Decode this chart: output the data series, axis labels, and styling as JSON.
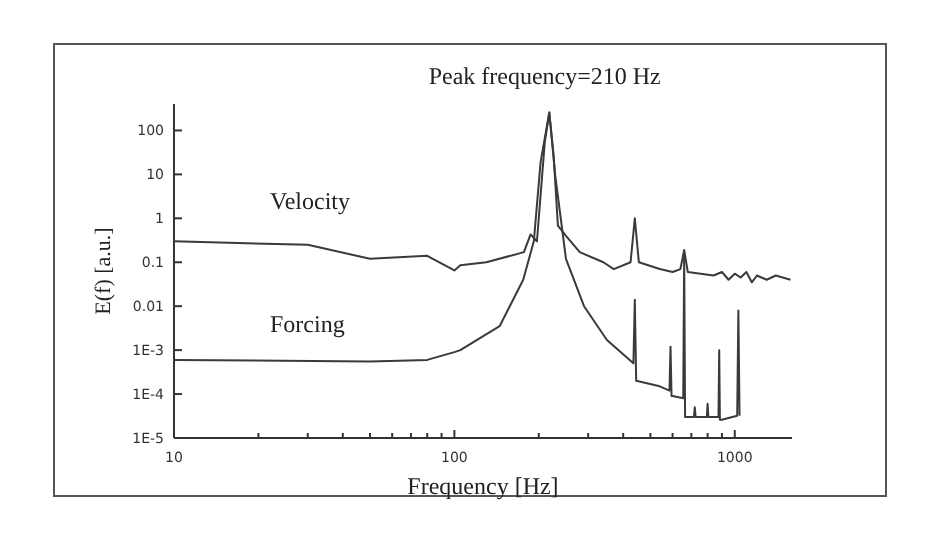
{
  "chart_data": {
    "type": "line",
    "xlabel": "Frequency [Hz]",
    "ylabel": "E(f) [a.u.]",
    "log": "xy",
    "xlim": [
      10,
      1600
    ],
    "ylim": [
      1e-05,
      400
    ],
    "xticks": [
      10,
      {
        "value": 20,
        "label": null
      },
      {
        "value": 30,
        "label": null
      },
      {
        "value": 40,
        "label": null
      },
      {
        "value": 50,
        "label": null
      },
      {
        "value": 60,
        "label": null
      },
      {
        "value": 70,
        "label": null
      },
      {
        "value": 80,
        "label": null
      },
      {
        "value": 90,
        "label": null
      },
      100,
      {
        "value": 200,
        "label": null
      },
      {
        "value": 300,
        "label": null
      },
      {
        "value": 400,
        "label": null
      },
      {
        "value": 500,
        "label": null
      },
      {
        "value": 600,
        "label": null
      },
      {
        "value": 700,
        "label": null
      },
      {
        "value": 800,
        "label": null
      },
      {
        "value": 900,
        "label": null
      },
      1000
    ],
    "yticks": [
      {
        "value": 1e-05,
        "label": "1E-5"
      },
      {
        "value": 0.0001,
        "label": "1E-4"
      },
      {
        "value": 0.001,
        "label": "1E-3"
      },
      0.01,
      0.1,
      1,
      10,
      100
    ],
    "grid": false,
    "marker": "none",
    "line_style": "solid",
    "annotations": [
      "Peak frequency=210 Hz"
    ],
    "series": [
      {
        "name": "Velocity",
        "color": "#3a3a3a",
        "x": [
          10,
          30,
          50,
          80,
          100,
          105,
          130,
          177,
          187,
          197,
          210,
          218,
          226,
          234,
          250,
          280,
          340,
          370,
          425,
          440,
          455,
          540,
          600,
          640,
          660,
          680,
          840,
          900,
          950,
          1000,
          1050,
          1100,
          1150,
          1200,
          1300,
          1400,
          1580
        ],
        "values": [
          0.3,
          0.25,
          0.12,
          0.14,
          0.065,
          0.085,
          0.1,
          0.17,
          0.43,
          0.3,
          53,
          256,
          26,
          0.68,
          0.4,
          0.17,
          0.1,
          0.07,
          0.1,
          1,
          0.1,
          0.07,
          0.06,
          0.07,
          0.19,
          0.06,
          0.05,
          0.06,
          0.04,
          0.055,
          0.045,
          0.06,
          0.035,
          0.05,
          0.04,
          0.05,
          0.04
        ]
      },
      {
        "name": "Forcing",
        "color": "#3a3a3a",
        "x": [
          10,
          50,
          80,
          100,
          105,
          145,
          176,
          192,
          203,
          218,
          229,
          250,
          290,
          350,
          435,
          440,
          445,
          540,
          585,
          590,
          595,
          600,
          655,
          660,
          665,
          670,
          715,
          720,
          725,
          795,
          800,
          805,
          875,
          880,
          885,
          900,
          1020,
          1030,
          1040
        ],
        "values": [
          0.0006,
          0.00055,
          0.0006,
          0.0009,
          0.001,
          0.0035,
          0.04,
          0.3,
          19,
          256,
          9.3,
          0.12,
          0.01,
          0.0017,
          0.0005,
          0.014,
          0.0002,
          0.00015,
          0.00012,
          0.0012,
          9e-05,
          9e-05,
          8e-05,
          0.15,
          3e-05,
          3e-05,
          3e-05,
          5e-05,
          3e-05,
          3e-05,
          6e-05,
          3e-05,
          3e-05,
          0.001,
          2.6e-05,
          2.6e-05,
          3.2e-05,
          0.008,
          3.2e-05
        ]
      }
    ]
  }
}
